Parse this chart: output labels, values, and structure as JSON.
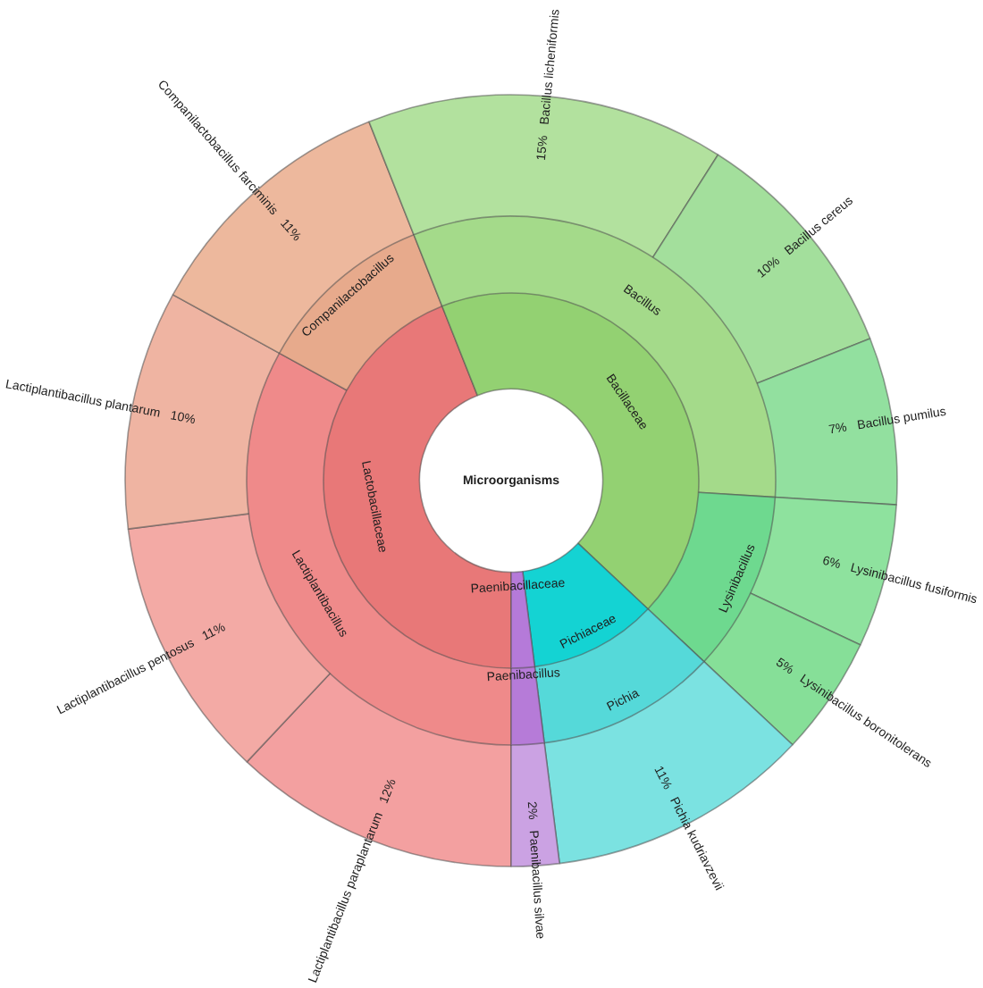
{
  "chart_data": [
    {
      "type": "donut",
      "title": "Microorganisms",
      "categories": [
        "Lactobacillaceae",
        "Bacillaceae",
        "Pichiaceae",
        "Paenibacillaceae"
      ],
      "values": [
        44,
        43,
        11,
        2
      ],
      "colors": [
        "#e87878",
        "#93d172",
        "#14d3d3",
        "#b57ad9"
      ]
    },
    {
      "type": "donut",
      "categories": [
        "Lactiplantibacillus",
        "Companilactobacillus",
        "Bacillus",
        "Lysinibacillus",
        "Pichia",
        "Paenibacillus"
      ],
      "values": [
        33,
        11,
        32,
        11,
        11,
        2
      ],
      "colors": [
        "#ef8a8a",
        "#e7aa8c",
        "#a4da8a",
        "#6ed98f",
        "#55d9d9",
        "#b67bd8"
      ]
    },
    {
      "type": "donut",
      "categories": [
        "Lactiplantibacillus paraplantarum",
        "Lactiplantibacillus pentosus",
        "Lactiplantibacillus plantarum",
        "Companilactobacillus farciminis",
        "Bacillus licheniformis",
        "Bacillus cereus",
        "Bacillus pumilus",
        "Lysinibacillus fusiformis",
        "Lysinibacillus boronitolerans",
        "Pichia kudriavzevii",
        "Paenibacillus silvae"
      ],
      "values": [
        12,
        11,
        10,
        11,
        15,
        10,
        7,
        6,
        5,
        11,
        2
      ],
      "value_labels": [
        "12%",
        "11%",
        "10%",
        "11%",
        "15%",
        "10%",
        "7%",
        "6%",
        "5%",
        "11%",
        "2%"
      ],
      "colors": [
        "#f3a0a0",
        "#f3aaa5",
        "#efb4a2",
        "#edb89d",
        "#b2e19e",
        "#a3df9c",
        "#92e09f",
        "#8ee29e",
        "#86df98",
        "#7be2e1",
        "#cba2e3"
      ]
    }
  ]
}
